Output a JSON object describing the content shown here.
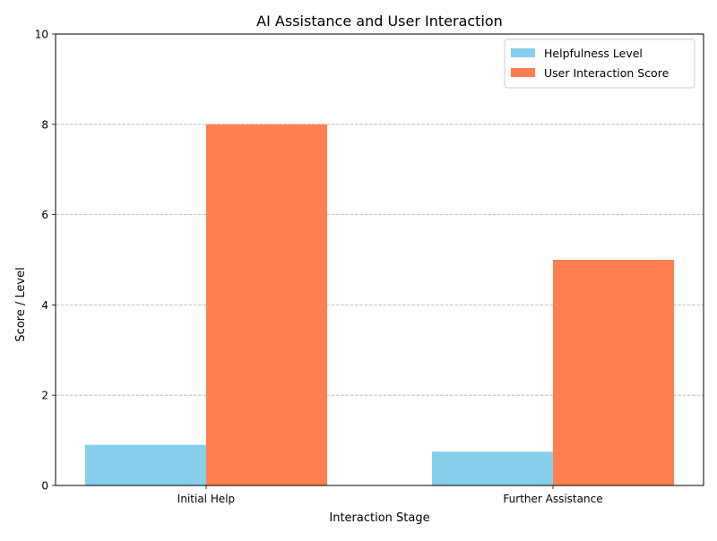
{
  "chart_data": {
    "type": "bar",
    "title": "AI Assistance and User Interaction",
    "xlabel": "Interaction Stage",
    "ylabel": "Score / Level",
    "categories": [
      "Initial Help",
      "Further Assistance"
    ],
    "series": [
      {
        "name": "Helpfulness Level",
        "values": [
          0.9,
          0.75
        ],
        "color": "#87CEEB"
      },
      {
        "name": "User Interaction Score",
        "values": [
          8,
          5
        ],
        "color": "#FF7F50"
      }
    ],
    "ylim": [
      0,
      10
    ],
    "yticks": [
      0,
      2,
      4,
      6,
      8,
      10
    ],
    "grid": "y-dashed",
    "legend": "top-right"
  }
}
